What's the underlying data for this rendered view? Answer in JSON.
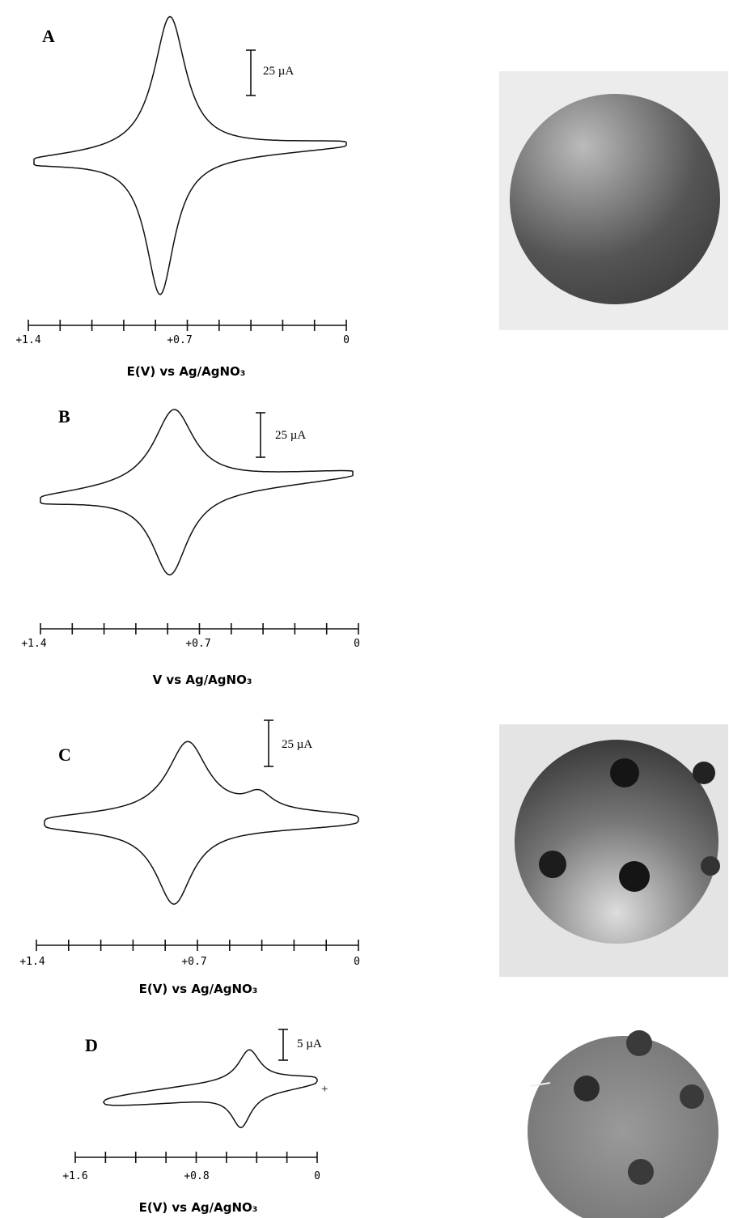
{
  "panels": [
    {
      "label": "A",
      "scale_bar": "25 µA",
      "axis": {
        "ticks": [
          "+1.4",
          "+0.7",
          "0"
        ],
        "title": "E(V) vs Ag/AgNO₃"
      }
    },
    {
      "label": "B",
      "scale_bar": "25 µA",
      "axis": {
        "ticks": [
          "+1.4",
          "+0.7",
          "0"
        ],
        "title": "V vs Ag/AgNO₃"
      }
    },
    {
      "label": "C",
      "scale_bar": "25 µA",
      "axis": {
        "ticks": [
          "+1.4",
          "+0.7",
          "0"
        ],
        "title": "E(V) vs Ag/AgNO₃"
      }
    },
    {
      "label": "D",
      "scale_bar": "5 µA",
      "marker": "+",
      "axis": {
        "ticks": [
          "+1.6",
          "+0.8",
          "0"
        ],
        "title": "E(V) vs Ag/AgNO₃"
      }
    }
  ]
}
